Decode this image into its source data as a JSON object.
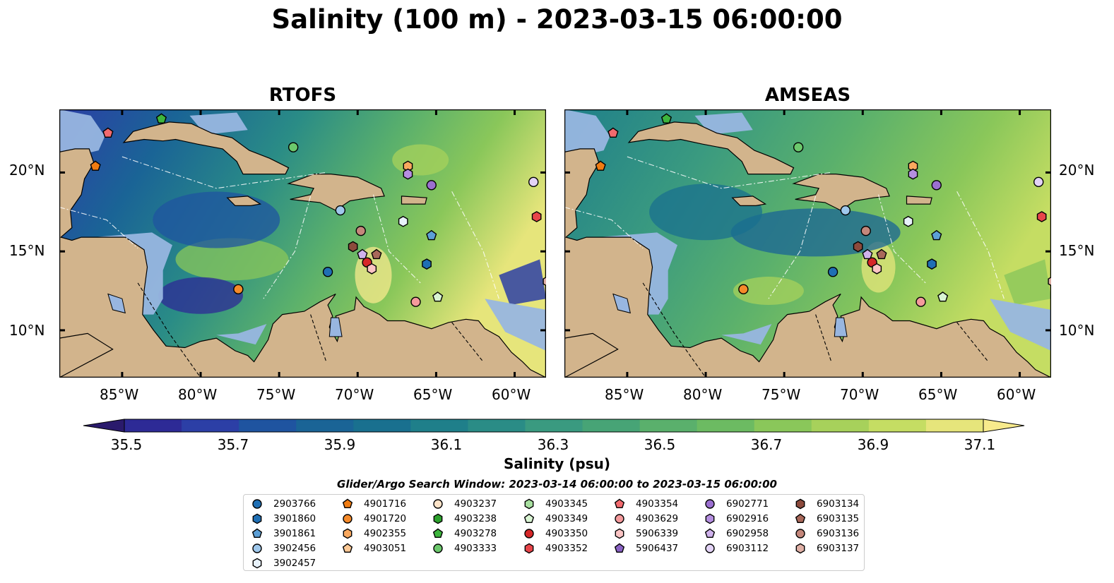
{
  "title": "Salinity (100 m) - 2023-03-15 06:00:00",
  "panels": [
    {
      "title": "RTOFS",
      "style": "rtofs"
    },
    {
      "title": "AMSEAS",
      "style": "amseas"
    }
  ],
  "axes": {
    "lon_ticks": [
      "85°W",
      "80°W",
      "75°W",
      "70°W",
      "65°W",
      "60°W"
    ],
    "lat_ticks": [
      "20°N",
      "15°N",
      "10°N"
    ],
    "lon_range": [
      -89,
      -58
    ],
    "lat_range": [
      7,
      24
    ]
  },
  "colorbar": {
    "label": "Salinity (psu)",
    "tick_labels": [
      "35.5",
      "35.7",
      "35.9",
      "36.1",
      "36.3",
      "36.5",
      "36.7",
      "36.9",
      "37.1"
    ],
    "range": [
      35.4,
      37.2
    ],
    "extend": "both",
    "colors": [
      "#2a1a6c",
      "#2d2a96",
      "#2c3fa6",
      "#1f54a0",
      "#1a6496",
      "#19708f",
      "#1f7f8a",
      "#2a8c86",
      "#3a9a80",
      "#47a476",
      "#5ab06c",
      "#6cbb62",
      "#8ac75a",
      "#a7d15b",
      "#c5dd63",
      "#e6e57b",
      "#f7ea8c"
    ]
  },
  "search_window": "Glider/Argo Search Window: 2023-03-14 06:00:00 to 2023-03-15 06:00:00",
  "legend": [
    {
      "id": "2903766",
      "marker": "circle",
      "color": "#1f6fb4"
    },
    {
      "id": "3901860",
      "marker": "hexagon",
      "color": "#1f6fb4"
    },
    {
      "id": "3901861",
      "marker": "pentagon",
      "color": "#5c9fd6"
    },
    {
      "id": "3902456",
      "marker": "circle",
      "color": "#9fc8ec"
    },
    {
      "id": "3902457",
      "marker": "hexagon",
      "color": "#e8f2fb"
    },
    {
      "id": "4901716",
      "marker": "pentagon",
      "color": "#f07c12"
    },
    {
      "id": "4901720",
      "marker": "circle",
      "color": "#f58a2a"
    },
    {
      "id": "4902355",
      "marker": "hexagon",
      "color": "#f9a85e"
    },
    {
      "id": "4903051",
      "marker": "pentagon",
      "color": "#fcc996"
    },
    {
      "id": "4903237",
      "marker": "circle",
      "color": "#fde3c8"
    },
    {
      "id": "4903238",
      "marker": "hexagon",
      "color": "#2ca02c"
    },
    {
      "id": "4903278",
      "marker": "pentagon",
      "color": "#3db53d"
    },
    {
      "id": "4903333",
      "marker": "circle",
      "color": "#6cc86c"
    },
    {
      "id": "4903345",
      "marker": "hexagon",
      "color": "#a8e0a0"
    },
    {
      "id": "4903349",
      "marker": "pentagon",
      "color": "#d9f4d3"
    },
    {
      "id": "4903350",
      "marker": "circle",
      "color": "#d62728"
    },
    {
      "id": "4903352",
      "marker": "hexagon",
      "color": "#e8454a"
    },
    {
      "id": "4903354",
      "marker": "pentagon",
      "color": "#f26a6e"
    },
    {
      "id": "4903629",
      "marker": "circle",
      "color": "#f49a9c"
    },
    {
      "id": "5906339",
      "marker": "hexagon",
      "color": "#fbc4c4"
    },
    {
      "id": "5906437",
      "marker": "pentagon",
      "color": "#8a62c4"
    },
    {
      "id": "6902771",
      "marker": "circle",
      "color": "#9b6fd0"
    },
    {
      "id": "6902916",
      "marker": "hexagon",
      "color": "#b58fe0"
    },
    {
      "id": "6902958",
      "marker": "pentagon",
      "color": "#cfb2ec"
    },
    {
      "id": "6903112",
      "marker": "circle",
      "color": "#e3d3f6"
    },
    {
      "id": "6903134",
      "marker": "hexagon",
      "color": "#8c4a3c"
    },
    {
      "id": "6903135",
      "marker": "pentagon",
      "color": "#a9685a"
    },
    {
      "id": "6903136",
      "marker": "circle",
      "color": "#c4877b"
    },
    {
      "id": "6903137",
      "marker": "hexagon",
      "color": "#e0b0a6"
    }
  ],
  "floats": [
    {
      "id": "4903354",
      "lon": -85.9,
      "lat": 22.5
    },
    {
      "id": "4901716",
      "lon": -86.7,
      "lat": 20.4
    },
    {
      "id": "4903278",
      "lon": -82.5,
      "lat": 23.4
    },
    {
      "id": "4903333",
      "lon": -74.1,
      "lat": 21.6
    },
    {
      "id": "4902355",
      "lon": -66.8,
      "lat": 20.4
    },
    {
      "id": "6902916",
      "lon": -66.8,
      "lat": 19.9
    },
    {
      "id": "6902771",
      "lon": -65.3,
      "lat": 19.2
    },
    {
      "id": "6903112",
      "lon": -58.8,
      "lat": 19.4
    },
    {
      "id": "4903352",
      "lon": -58.6,
      "lat": 17.2
    },
    {
      "id": "3902456",
      "lon": -71.1,
      "lat": 17.6
    },
    {
      "id": "3902457",
      "lon": -67.1,
      "lat": 16.9
    },
    {
      "id": "3901861",
      "lon": -65.3,
      "lat": 16.0
    },
    {
      "id": "6903136",
      "lon": -69.8,
      "lat": 16.3
    },
    {
      "id": "6903134",
      "lon": -70.3,
      "lat": 15.3
    },
    {
      "id": "6902958",
      "lon": -69.7,
      "lat": 14.8
    },
    {
      "id": "6903135",
      "lon": -68.8,
      "lat": 14.8
    },
    {
      "id": "4903350",
      "lon": -69.4,
      "lat": 14.3
    },
    {
      "id": "5906339",
      "lon": -69.1,
      "lat": 13.9
    },
    {
      "id": "2903766",
      "lon": -71.9,
      "lat": 13.7
    },
    {
      "id": "3901860",
      "lon": -65.6,
      "lat": 14.2
    },
    {
      "id": "4901720",
      "lon": -77.6,
      "lat": 12.6
    },
    {
      "id": "4903349",
      "lon": -64.9,
      "lat": 12.1
    },
    {
      "id": "4903629",
      "lon": -66.3,
      "lat": 11.8
    },
    {
      "id": "6903137",
      "lon": -57.9,
      "lat": 13.1
    }
  ]
}
